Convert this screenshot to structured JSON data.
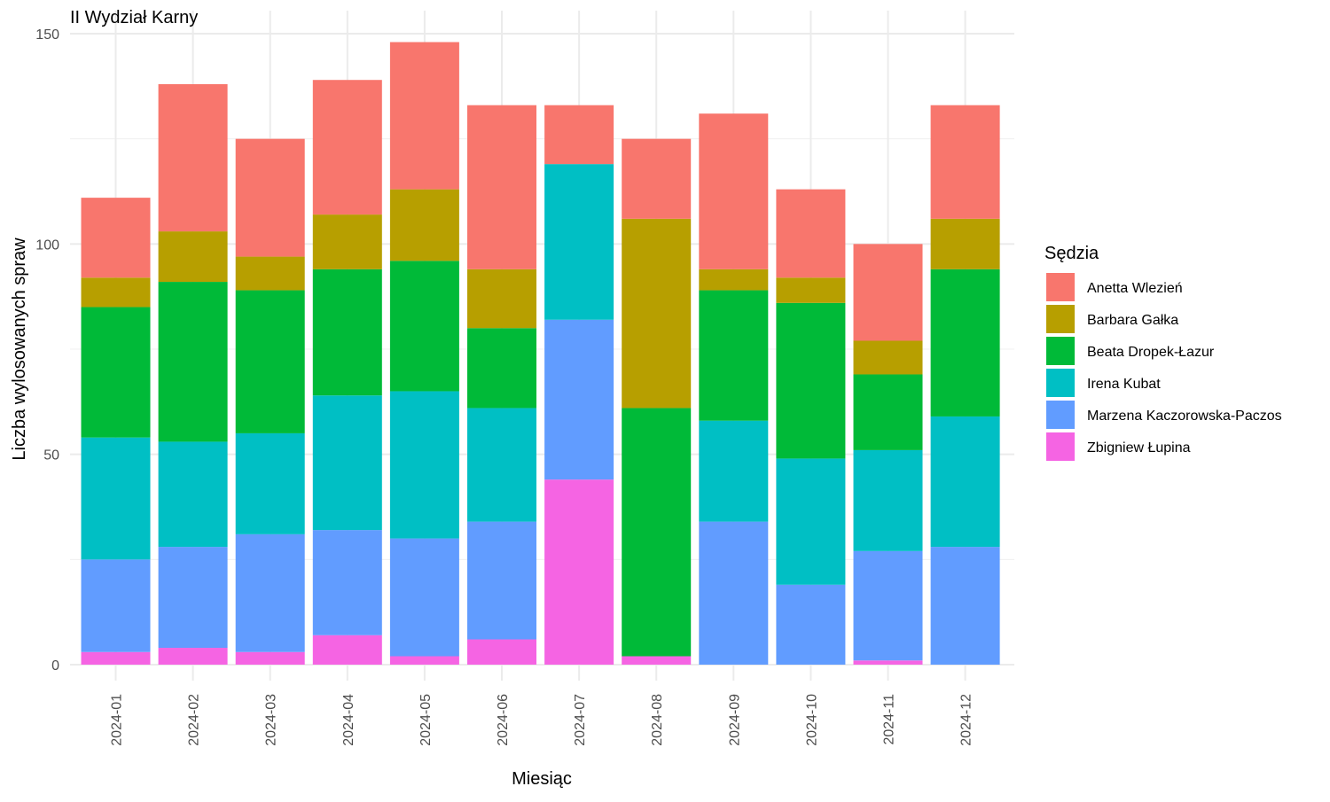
{
  "chart_data": {
    "type": "bar",
    "stacked": true,
    "title": "II Wydział Karny",
    "xlabel": "Miesiąc",
    "ylabel": "Liczba wylosowanych spraw",
    "ylim": [
      0,
      150
    ],
    "yticks": [
      0,
      50,
      100,
      150
    ],
    "grid": true,
    "legend_title": "Sędzia",
    "legend_position": "right",
    "categories": [
      "2024-01",
      "2024-02",
      "2024-03",
      "2024-04",
      "2024-05",
      "2024-06",
      "2024-07",
      "2024-08",
      "2024-09",
      "2024-10",
      "2024-11",
      "2024-12"
    ],
    "series": [
      {
        "name": "Anetta Wlezień",
        "color": "#F8766D",
        "values": [
          19,
          35,
          28,
          32,
          35,
          39,
          14,
          19,
          37,
          21,
          23,
          27
        ]
      },
      {
        "name": "Barbara Gałka",
        "color": "#B79F00",
        "values": [
          7,
          12,
          8,
          13,
          17,
          14,
          0,
          45,
          5,
          6,
          8,
          12
        ]
      },
      {
        "name": "Beata Dropek-Łazur",
        "color": "#00BA38",
        "values": [
          31,
          38,
          34,
          30,
          31,
          19,
          0,
          59,
          31,
          37,
          18,
          35
        ]
      },
      {
        "name": "Irena Kubat",
        "color": "#00BFC4",
        "values": [
          29,
          25,
          24,
          32,
          35,
          27,
          37,
          0,
          24,
          30,
          24,
          31
        ]
      },
      {
        "name": "Marzena Kaczorowska-Paczos",
        "color": "#619CFF",
        "values": [
          22,
          24,
          28,
          25,
          28,
          28,
          38,
          0,
          34,
          19,
          26,
          28
        ]
      },
      {
        "name": "Zbigniew Łupina",
        "color": "#F564E3",
        "values": [
          3,
          4,
          3,
          7,
          2,
          6,
          44,
          2,
          0,
          0,
          1,
          0
        ]
      }
    ]
  }
}
